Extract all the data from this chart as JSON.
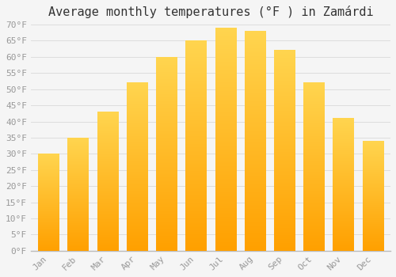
{
  "title": "Average monthly temperatures (°F ) in Zamárdi",
  "months": [
    "Jan",
    "Feb",
    "Mar",
    "Apr",
    "May",
    "Jun",
    "Jul",
    "Aug",
    "Sep",
    "Oct",
    "Nov",
    "Dec"
  ],
  "values": [
    30,
    35,
    43,
    52,
    60,
    65,
    69,
    68,
    62,
    52,
    41,
    34
  ],
  "bar_color_top": "#FFD54F",
  "bar_color_bottom": "#FFA000",
  "background_color": "#F5F5F5",
  "ylim": [
    0,
    70
  ],
  "ytick_step": 5,
  "grid_color": "#DDDDDD",
  "title_fontsize": 11,
  "tick_fontsize": 8,
  "tick_color": "#999999",
  "font_family": "monospace"
}
